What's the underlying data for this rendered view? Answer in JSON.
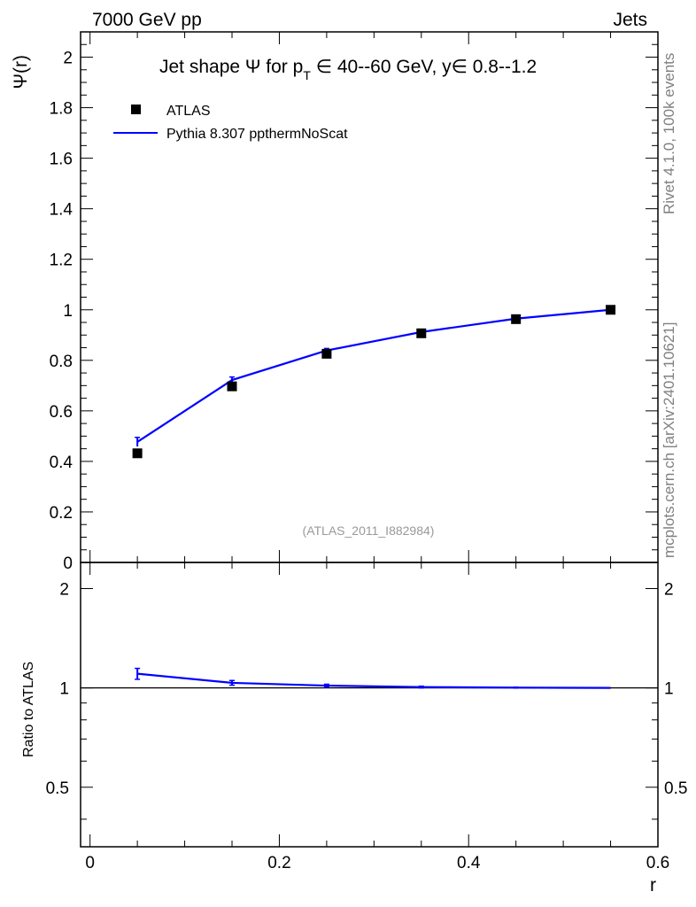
{
  "header": {
    "left": "7000 GeV pp",
    "right": "Jets"
  },
  "side_labels": {
    "rivet": "Rivet 4.1.0,  100k events",
    "mcplots": "mcplots.cern.ch [arXiv:2401.10621]"
  },
  "chart_data": [
    {
      "type": "scatter",
      "title": "Jet shape Ψ for p_T ∈ 40--60 GeV, y∈ 0.8--1.2",
      "title_parts": {
        "prefix": "Jet shape Ψ for p",
        "sub": "T",
        "suffix": " ∈ 40--60 GeV, y∈ 0.8--1.2"
      },
      "ylabel": "Ψ(r)",
      "xlabel": "r",
      "watermark": "(ATLAS_2011_I882984)",
      "xlim": [
        -0.01,
        0.6
      ],
      "ylim": [
        0,
        2.1
      ],
      "yticks": [
        0,
        0.2,
        0.4,
        0.6,
        0.8,
        1,
        1.2,
        1.4,
        1.6,
        1.8,
        2
      ],
      "ytick_labels": [
        "0",
        "0.2",
        "0.4",
        "0.6",
        "0.8",
        "1",
        "1.2",
        "1.4",
        "1.6",
        "1.8",
        "2"
      ],
      "legend_placement": "top-left",
      "series": [
        {
          "name": "ATLAS",
          "style": "markers",
          "color": "#000000",
          "x": [
            0.05,
            0.15,
            0.25,
            0.35,
            0.45,
            0.55
          ],
          "y": [
            0.432,
            0.697,
            0.826,
            0.907,
            0.963,
            1.0
          ]
        },
        {
          "name": "Pythia 8.307 ppthermNoScat",
          "style": "line",
          "color": "#0000ff",
          "x": [
            0.05,
            0.15,
            0.25,
            0.35,
            0.45,
            0.55
          ],
          "y": [
            0.477,
            0.722,
            0.839,
            0.912,
            0.965,
            1.0
          ],
          "err": [
            0.018,
            0.012,
            0.008,
            0.005,
            0.003,
            0.0
          ]
        }
      ]
    },
    {
      "type": "line",
      "ylabel": "Ratio to ATLAS",
      "xlabel": "r",
      "xlim": [
        -0.01,
        0.6
      ],
      "ylim": [
        0.33,
        2.4
      ],
      "yticks": [
        0.5,
        1,
        2
      ],
      "ytick_labels": [
        "0.5",
        "1",
        "2"
      ],
      "xticks": [
        0,
        0.2,
        0.4,
        0.6
      ],
      "xtick_labels": [
        "0",
        "0.2",
        "0.4",
        "0.6"
      ],
      "reference_line": 1,
      "series": [
        {
          "name": "Pythia 8.307 ppthermNoScat",
          "color": "#0000ff",
          "x": [
            0.05,
            0.15,
            0.25,
            0.35,
            0.45,
            0.55
          ],
          "y": [
            1.104,
            1.036,
            1.016,
            1.006,
            1.002,
            1.0
          ],
          "err": [
            0.042,
            0.017,
            0.01,
            0.006,
            0.003,
            0.0
          ]
        }
      ]
    }
  ]
}
